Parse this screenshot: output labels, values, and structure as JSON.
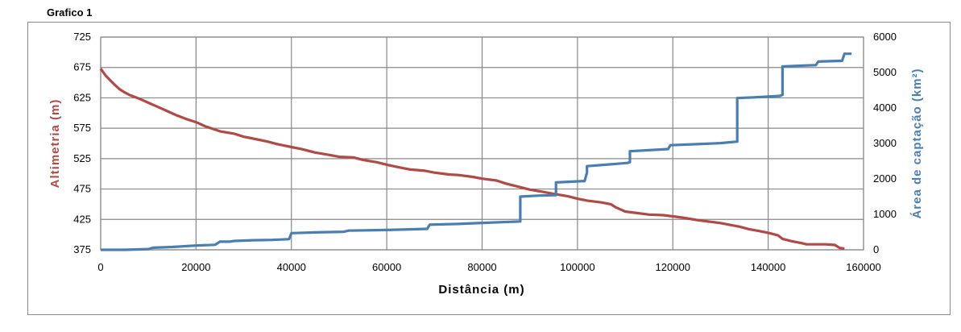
{
  "chart_title": "Grafico 1",
  "chart_data": {
    "type": "line",
    "title": "Grafico 1",
    "xlabel": "Distância (m)",
    "ylabel": "Altimetria (m)",
    "y2label": "Área de captação (km²)",
    "xlim": [
      0,
      160000
    ],
    "ylim": [
      375,
      725
    ],
    "y2lim": [
      0,
      6000
    ],
    "x_ticks": [
      "0",
      "20000",
      "40000",
      "60000",
      "80000",
      "100000",
      "120000",
      "140000",
      "160000"
    ],
    "y_ticks": [
      "725",
      "675",
      "625",
      "575",
      "525",
      "475",
      "425",
      "375"
    ],
    "y2_ticks": [
      "6000",
      "5000",
      "4000",
      "3000",
      "2000",
      "1000",
      "0"
    ],
    "grid": true,
    "legend": "none",
    "colors": {
      "altimetria": "#b04a45",
      "area": "#4b7eb0",
      "grid": "#888888"
    },
    "series": [
      {
        "axis": "left",
        "x": [
          0,
          1000,
          2000,
          3000,
          4000,
          5000,
          6000,
          8000,
          10000,
          12000,
          14000,
          16000,
          18000,
          20000,
          22000,
          25000,
          28000,
          30000,
          32000,
          35000,
          37000,
          40000,
          42000,
          45000,
          48000,
          50000,
          53000,
          55000,
          58000,
          60000,
          63000,
          65000,
          68000,
          70000,
          73000,
          75000,
          78000,
          80000,
          83000,
          85000,
          88000,
          90000,
          93000,
          95000,
          98000,
          100000,
          102000,
          105000,
          107000,
          108000,
          110000,
          112000,
          115000,
          118000,
          120000,
          122000,
          125000,
          128000,
          130000,
          132000,
          134000,
          136000,
          138000,
          140000,
          142000,
          143000,
          145000,
          147000,
          148000,
          150000,
          152000,
          154000,
          155000,
          156000
        ],
        "values": [
          673,
          662,
          654,
          646,
          639,
          634,
          630,
          624,
          617,
          610,
          603,
          596,
          590,
          585,
          578,
          570,
          566,
          561,
          558,
          553,
          549,
          544,
          541,
          535,
          531,
          528,
          527,
          523,
          519,
          515,
          510,
          507,
          505,
          502,
          499,
          498,
          495,
          492,
          489,
          484,
          478,
          474,
          470,
          467,
          463,
          459,
          456,
          453,
          450,
          445,
          438,
          436,
          433,
          432,
          430,
          428,
          424,
          421,
          419,
          416,
          413,
          409,
          406,
          403,
          399,
          393,
          389,
          386,
          384,
          384,
          384,
          383,
          378,
          377
        ]
      },
      {
        "axis": "right",
        "x": [
          0,
          5000,
          10000,
          11000,
          15000,
          20000,
          24000,
          25000,
          27000,
          28000,
          32000,
          36000,
          39500,
          40000,
          45000,
          51000,
          52000,
          60000,
          68500,
          69000,
          75000,
          80000,
          88000,
          88000,
          92000,
          95500,
          95500,
          101500,
          102000,
          102000,
          110500,
          111000,
          111000,
          119000,
          119500,
          119500,
          125000,
          130000,
          133300,
          133500,
          133500,
          137000,
          142500,
          143000,
          143000,
          148000,
          150000,
          150500,
          153000,
          155500,
          156000,
          157500
        ],
        "values": [
          0,
          0,
          20,
          60,
          80,
          120,
          140,
          230,
          230,
          250,
          270,
          280,
          300,
          470,
          490,
          510,
          540,
          560,
          590,
          710,
          730,
          760,
          800,
          1500,
          1530,
          1540,
          1900,
          1940,
          2180,
          2360,
          2450,
          2470,
          2780,
          2840,
          2950,
          2950,
          2980,
          3010,
          3050,
          3050,
          4280,
          4300,
          4340,
          4370,
          5170,
          5200,
          5210,
          5310,
          5320,
          5330,
          5530,
          5530
        ]
      }
    ]
  }
}
